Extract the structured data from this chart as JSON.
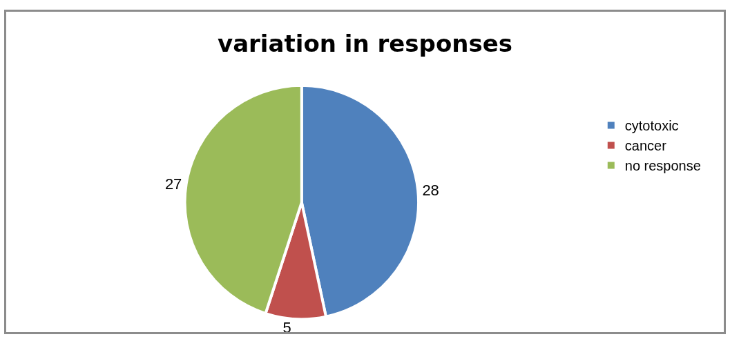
{
  "chart_data": {
    "type": "pie",
    "title": "variation in responses",
    "categories": [
      "cytotoxic",
      "cancer",
      "no response"
    ],
    "values": [
      28,
      5,
      27
    ],
    "colors": [
      "#4f81bd",
      "#c0504d",
      "#9bbb59"
    ],
    "data_labels": true,
    "legend": "right"
  }
}
